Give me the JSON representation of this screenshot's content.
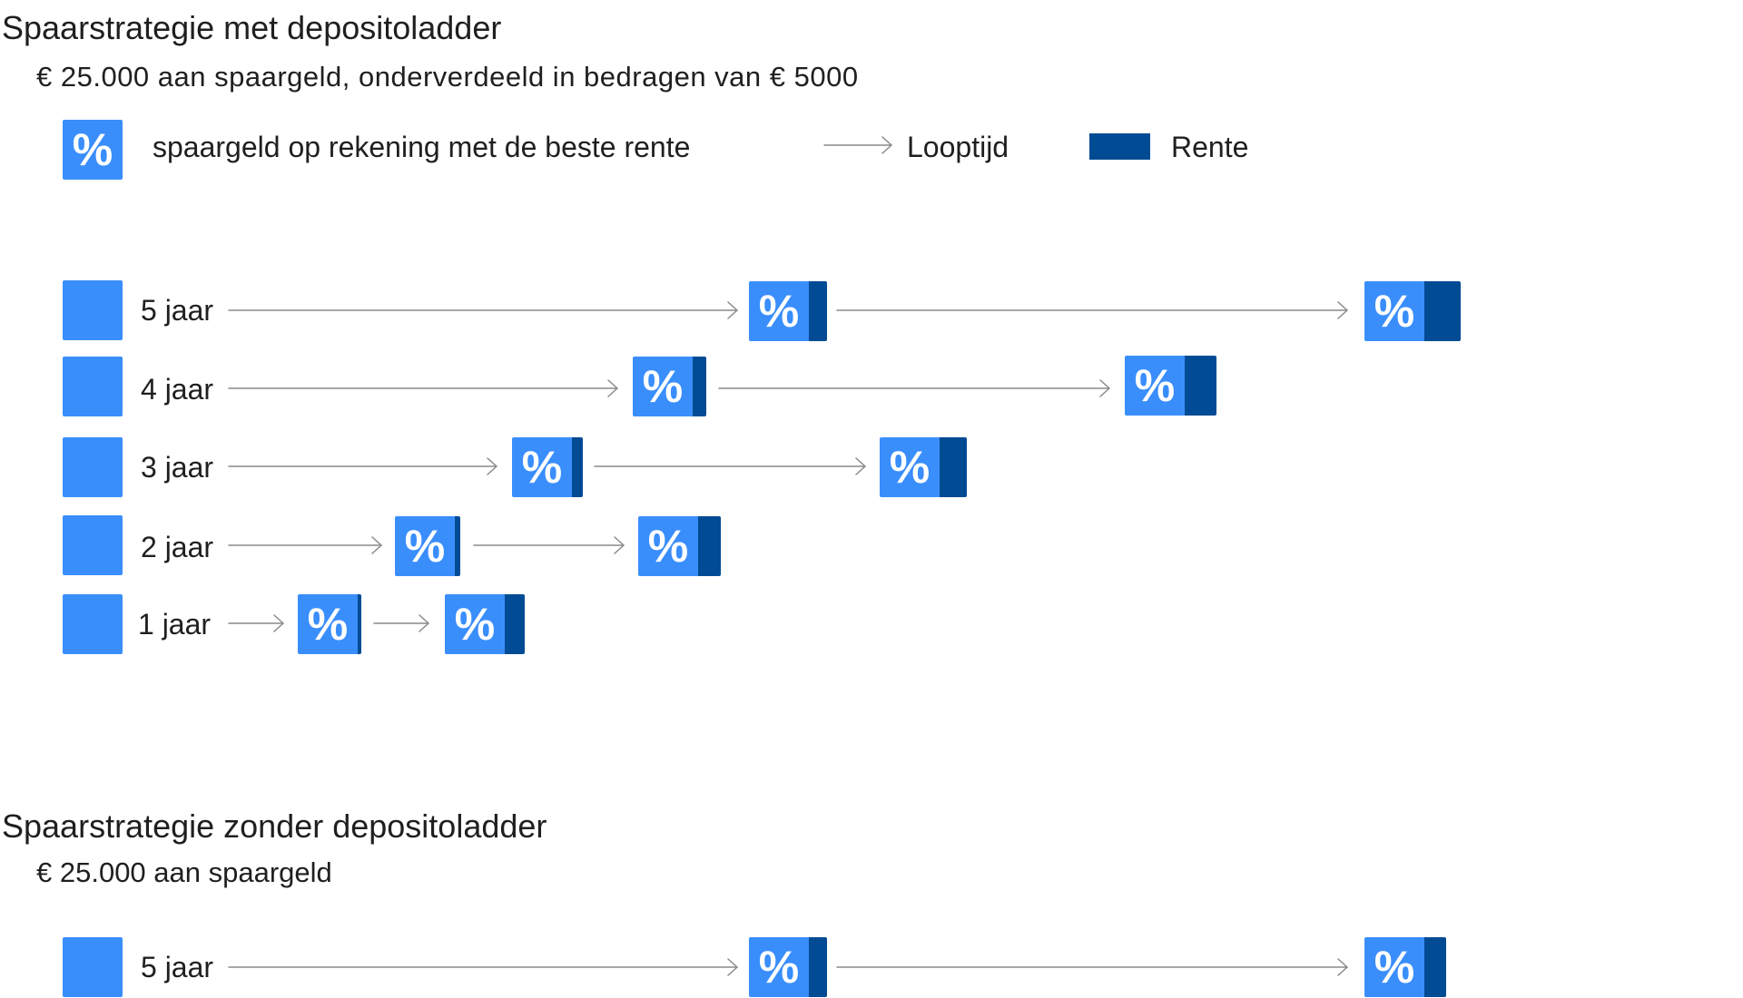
{
  "section1": {
    "title": "Spaarstrategie met depositoladder",
    "subtitle": "€ 25.000 aan spaargeld, onderverdeeld in bedragen van € 5000"
  },
  "legend": {
    "percent_symbol": "%",
    "savings_label": "spaargeld op rekening met de beste rente",
    "term_label": "Looptijd",
    "interest_label": "Rente"
  },
  "ladder_rows": [
    {
      "label": "5 jaar",
      "term_years": 5,
      "symbols": [
        "%",
        "%"
      ]
    },
    {
      "label": "4 jaar",
      "term_years": 4,
      "symbols": [
        "%",
        "%"
      ]
    },
    {
      "label": "3 jaar",
      "term_years": 3,
      "symbols": [
        "%",
        "%"
      ]
    },
    {
      "label": "2 jaar",
      "term_years": 2,
      "symbols": [
        "%",
        "%"
      ]
    },
    {
      "label": "1 jaar",
      "term_years": 1,
      "symbols": [
        "%",
        "%"
      ]
    }
  ],
  "section2": {
    "title": "Spaarstrategie zonder depositoladder",
    "subtitle": "€ 25.000 aan spaargeld",
    "row": {
      "label": "5 jaar",
      "term_years": 5,
      "symbols": [
        "%",
        "%"
      ]
    }
  },
  "colors": {
    "savings_blue": "#3a8efc",
    "interest_navy": "#004b93",
    "arrow_gray": "#8a8a8a"
  }
}
